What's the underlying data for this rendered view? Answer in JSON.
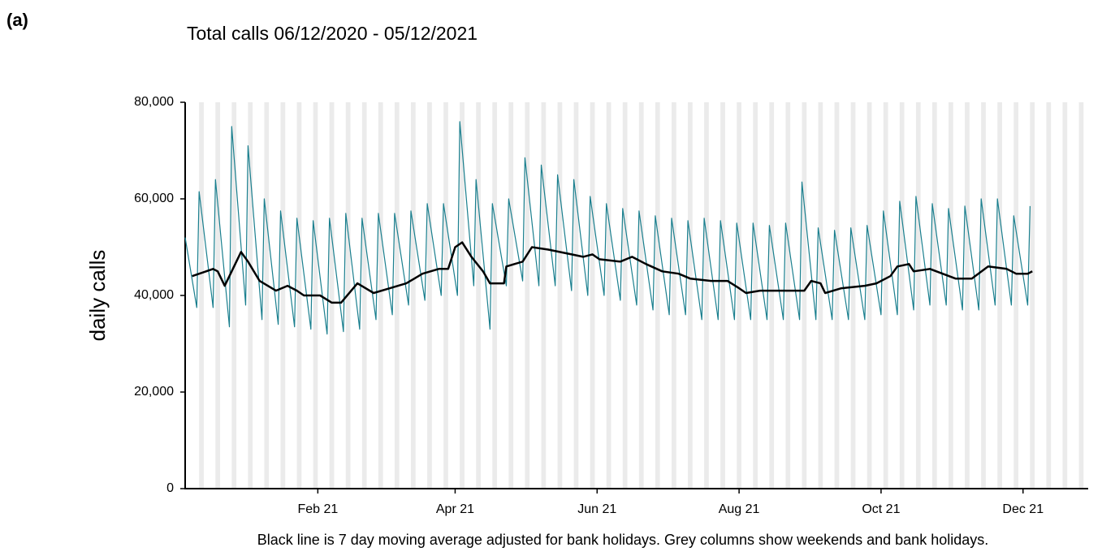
{
  "panel_label": "(a)",
  "chart_data": {
    "type": "line",
    "title": "Total calls 06/12/2020 - 05/12/2021",
    "y_label": "daily calls",
    "footnote": "Black line is 7 day moving average adjusted for bank holidays. Grey columns show weekends and bank holidays.",
    "xlim": [
      0,
      388
    ],
    "xticks": [
      {
        "value": 57,
        "label": "Feb 21"
      },
      {
        "value": 116,
        "label": "Apr 21"
      },
      {
        "value": 177,
        "label": "Jun 21"
      },
      {
        "value": 238,
        "label": "Aug 21"
      },
      {
        "value": 299,
        "label": "Oct 21"
      },
      {
        "value": 360,
        "label": "Dec 21"
      }
    ],
    "ylim": [
      0,
      80000
    ],
    "yticks": [
      0,
      {
        "value": 20000,
        "label": "20,000"
      },
      {
        "value": 40000,
        "label": "40,000"
      },
      {
        "value": 60000,
        "label": "60,000"
      },
      {
        "value": 80000,
        "label": "80,000"
      }
    ],
    "weekend_columns": true,
    "weekend_color": "#ebebeb",
    "series": [
      {
        "color": "#1a7f8e",
        "width": 1.2,
        "x": [
          0,
          5,
          6,
          12,
          13,
          19,
          20,
          26,
          27,
          33,
          34,
          40,
          41,
          47,
          48,
          54,
          55,
          61,
          62,
          68,
          69,
          75,
          76,
          82,
          83,
          89,
          90,
          96,
          97,
          103,
          104,
          110,
          111,
          117,
          118,
          124,
          125,
          131,
          132,
          138,
          139,
          145,
          146,
          152,
          153,
          159,
          160,
          166,
          167,
          173,
          174,
          180,
          181,
          187,
          188,
          194,
          195,
          201,
          202,
          208,
          209,
          215,
          216,
          222,
          223,
          229,
          230,
          236,
          237,
          243,
          244,
          250,
          251,
          257,
          258,
          264,
          265,
          271,
          272,
          278,
          279,
          285,
          286,
          292,
          293,
          299,
          300,
          306,
          307,
          313,
          314,
          320,
          321,
          327,
          328,
          334,
          335,
          341,
          342,
          348,
          349,
          355,
          356,
          362,
          363
        ],
        "values": [
          52000,
          37500,
          61500,
          37500,
          64000,
          33500,
          75000,
          38000,
          71000,
          35000,
          60000,
          34000,
          57500,
          33500,
          56000,
          33000,
          55500,
          32000,
          56000,
          32500,
          57000,
          33000,
          56000,
          35000,
          57000,
          36000,
          57000,
          38000,
          57500,
          39000,
          59000,
          40000,
          59000,
          40000,
          76000,
          42000,
          64000,
          33000,
          59000,
          42000,
          60000,
          43000,
          68500,
          42000,
          67000,
          42000,
          65000,
          41000,
          64000,
          40000,
          60500,
          40000,
          59000,
          39000,
          58000,
          38000,
          57500,
          37000,
          56500,
          36000,
          56000,
          36000,
          55500,
          35000,
          56000,
          35000,
          55500,
          35000,
          55000,
          35000,
          55000,
          35000,
          54500,
          35000,
          55000,
          35000,
          63500,
          35000,
          54000,
          35000,
          53500,
          35000,
          54000,
          35000,
          54500,
          36000,
          57500,
          36000,
          59500,
          37000,
          60500,
          38000,
          59000,
          38000,
          58000,
          37000,
          58500,
          37000,
          60000,
          38000,
          60000,
          38000,
          56500,
          38000,
          58500
        ]
      },
      {
        "color": "#000000",
        "width": 2.5,
        "x": [
          3,
          9,
          12,
          14,
          17,
          20,
          24,
          27,
          32,
          39,
          44,
          48,
          51,
          58,
          63,
          67,
          74,
          81,
          88,
          95,
          102,
          109,
          113,
          116,
          119,
          123,
          128,
          131,
          137,
          138,
          145,
          149,
          156,
          166,
          171,
          175,
          178,
          187,
          192,
          198,
          205,
          212,
          217,
          226,
          233,
          238,
          241,
          247,
          261,
          266,
          269,
          273,
          275,
          282,
          292,
          297,
          303,
          306,
          311,
          313,
          320,
          331,
          338,
          345,
          353,
          357,
          362,
          364
        ],
        "values": [
          44000,
          45000,
          45500,
          45000,
          42000,
          45000,
          49000,
          47000,
          43000,
          41000,
          42000,
          41000,
          40000,
          40000,
          38500,
          38500,
          42500,
          40500,
          41500,
          42500,
          44500,
          45500,
          45500,
          50000,
          51000,
          48000,
          45000,
          42500,
          42500,
          46000,
          47000,
          50000,
          49500,
          48500,
          48000,
          48500,
          47500,
          47000,
          48000,
          46500,
          45000,
          44500,
          43500,
          43000,
          43000,
          41500,
          40500,
          41000,
          41000,
          41000,
          43000,
          42500,
          40500,
          41500,
          42000,
          42500,
          44000,
          46000,
          46500,
          45000,
          45500,
          43500,
          43500,
          46000,
          45500,
          44500,
          44500,
          45000
        ]
      }
    ]
  }
}
